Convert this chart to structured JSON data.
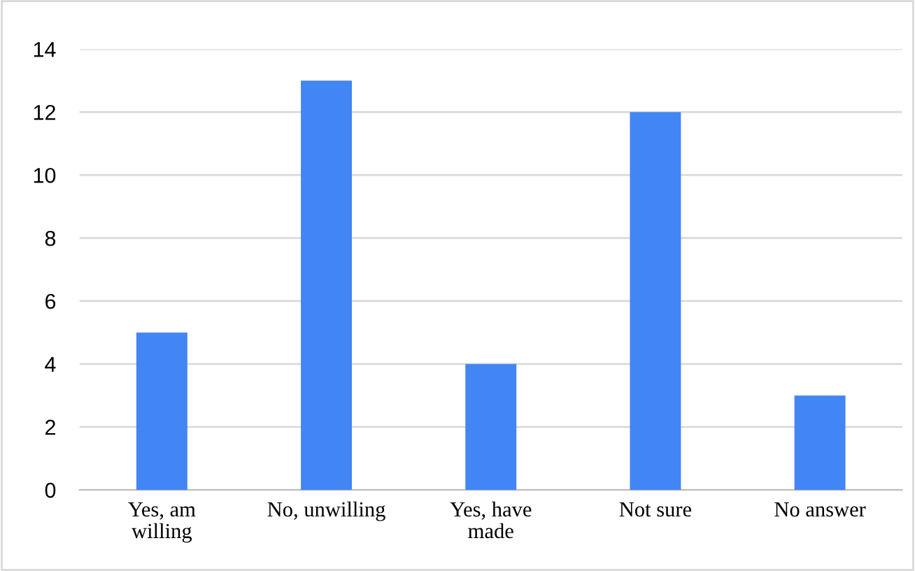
{
  "chart_data": {
    "type": "bar",
    "categories": [
      "Yes, am willing",
      "No, unwilling",
      "Yes, have made",
      "Not sure",
      "No answer"
    ],
    "values": [
      5,
      13,
      4,
      12,
      3
    ],
    "color": "#4285f4",
    "ylim": [
      0,
      14
    ],
    "yticks": [
      0,
      2,
      4,
      6,
      8,
      10,
      12,
      14
    ],
    "grid": "y"
  }
}
